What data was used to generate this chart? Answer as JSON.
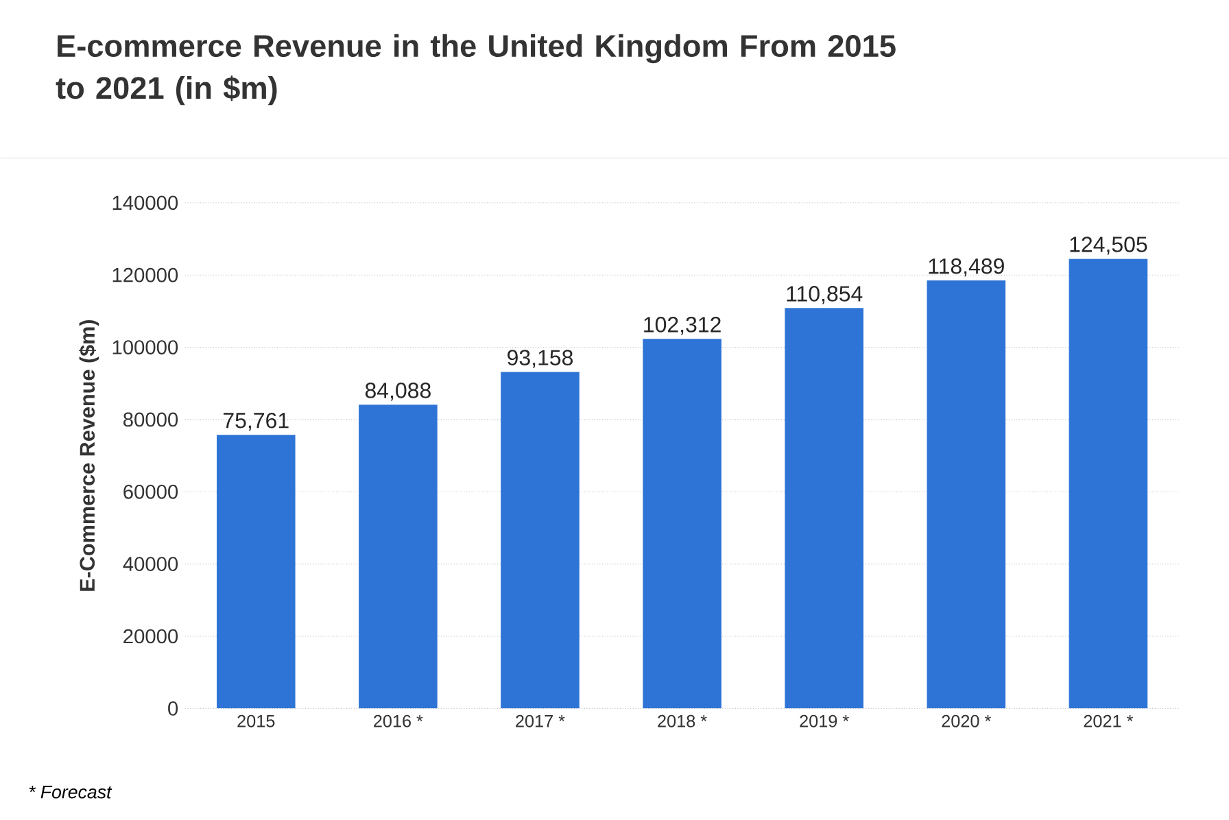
{
  "chart_data": {
    "type": "bar",
    "title": "E-commerce Revenue in the United Kingdom From 2015 to 2021 (in $m)",
    "ylabel": "E-Commerce Revenue ($m)",
    "categories": [
      "2015",
      "2016 *",
      "2017 *",
      "2018 *",
      "2019 *",
      "2020 *",
      "2021 *"
    ],
    "values": [
      75761,
      84088,
      93158,
      102312,
      110854,
      118489,
      124505
    ],
    "value_labels": [
      "75,761",
      "84,088",
      "93,158",
      "102,312",
      "110,854",
      "118,489",
      "124,505"
    ],
    "color": "#2e74d6",
    "ylim": [
      0,
      140000
    ],
    "yticks": [
      0,
      20000,
      40000,
      60000,
      80000,
      100000,
      120000,
      140000
    ],
    "grid": "y",
    "annotations": [
      "* Forecast"
    ]
  }
}
